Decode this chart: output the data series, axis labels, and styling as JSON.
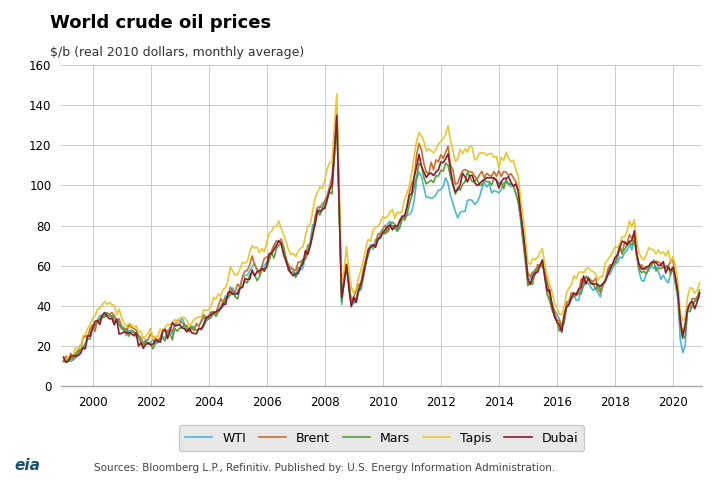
{
  "title": "World crude oil prices",
  "subtitle": "$/b (real 2010 dollars, monthly average)",
  "ylim": [
    0,
    160
  ],
  "yticks": [
    0,
    20,
    40,
    60,
    80,
    100,
    120,
    140,
    160
  ],
  "xlim_start": 1998.92,
  "xlim_end": 2021.0,
  "xtick_years": [
    2000,
    2002,
    2004,
    2006,
    2008,
    2010,
    2012,
    2014,
    2016,
    2018,
    2020
  ],
  "background_color": "#ffffff",
  "grid_color": "#cccccc",
  "series_colors": {
    "WTI": "#4db8d4",
    "Brent": "#c8702a",
    "Mars": "#5a9e3a",
    "Tapis": "#e8c832",
    "Dubai": "#8b1a2e"
  },
  "legend_bg": "#e8e8e8",
  "source_text": "Sources: Bloomberg L.P., Refinitiv. Published by: U.S. Energy Information Administration.",
  "line_width": 1.2
}
